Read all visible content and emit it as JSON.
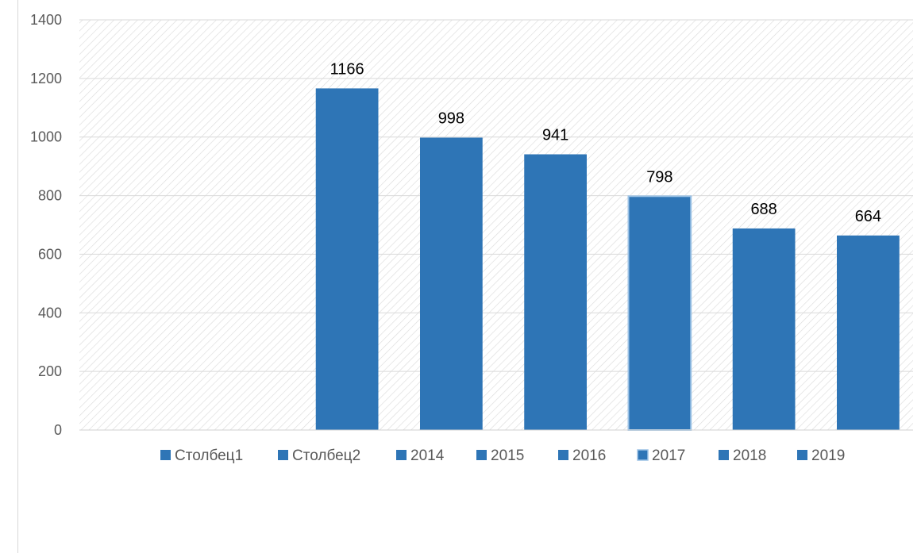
{
  "chart_data": {
    "type": "bar",
    "categories": [
      "Столбец1",
      "Столбец2",
      "2014",
      "2015",
      "2016",
      "2017",
      "2018",
      "2019"
    ],
    "values": [
      null,
      null,
      1166,
      998,
      941,
      798,
      688,
      664
    ],
    "data_labels": [
      "",
      "",
      "1166",
      "998",
      "941",
      "798",
      "688",
      "664"
    ],
    "ylim": [
      0,
      1400
    ],
    "yticks": [
      0,
      200,
      400,
      600,
      800,
      1000,
      1200,
      1400
    ],
    "ytick_labels": [
      "0",
      "200",
      "400",
      "600",
      "800",
      "1000",
      "1200",
      "1400"
    ],
    "grid": true,
    "legend_position": "bottom",
    "legend": [
      "Столбец1",
      "Столбец2",
      "2014",
      "2015",
      "2016",
      "2017",
      "2018",
      "2019"
    ],
    "bar_color": "#2E75B6",
    "highlight_index": 5,
    "highlight_border_color": "#9DC3E6",
    "plot_background": "diagonal-hatch"
  }
}
